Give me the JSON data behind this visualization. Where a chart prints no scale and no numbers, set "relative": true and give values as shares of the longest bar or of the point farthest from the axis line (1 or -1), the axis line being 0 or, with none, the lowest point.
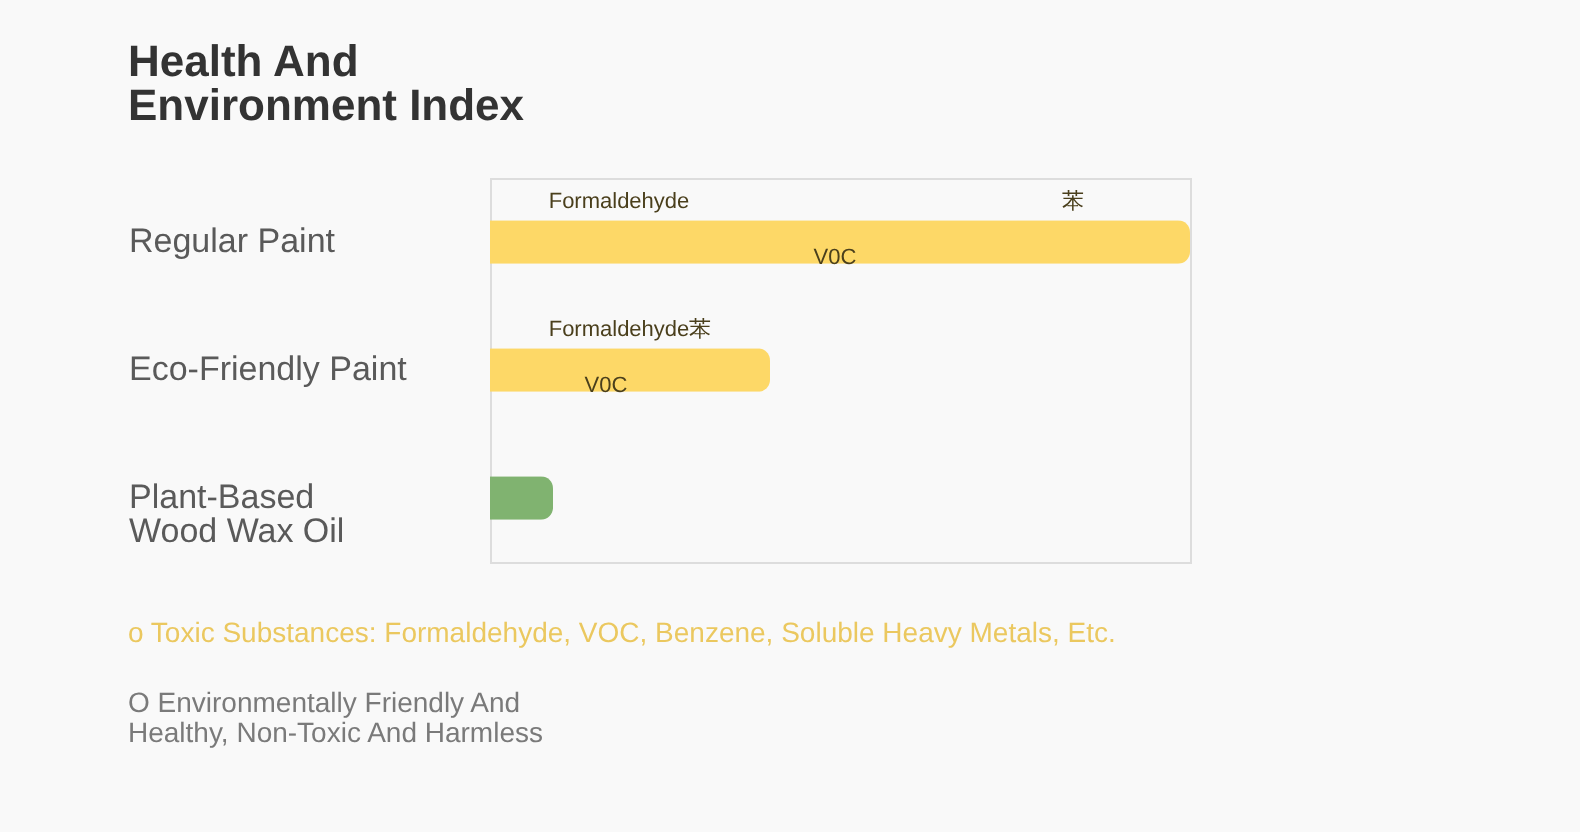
{
  "chart_data": {
    "type": "bar",
    "orientation": "horizontal",
    "relative": true,
    "title": "Health And\nEnvironment Index",
    "categories": [
      "Regular Paint",
      "Eco-Friendly Paint",
      "Plant-Based\nWood Wax Oil"
    ],
    "values": [
      1,
      0.4,
      0.09
    ],
    "colors": [
      "#fdd867",
      "#fdd867",
      "#80b370"
    ],
    "annotations": [
      "Formaldehyde",
      "V0C",
      "苯",
      "Formaldehyde",
      "V0C",
      "苯",
      "o Toxic Substances: Formaldehyde, VOC, Benzene, Soluble Heavy Metals, Etc.",
      "O Environmentally Friendly And\nHealthy, Non-Toxic And Harmless"
    ]
  }
}
